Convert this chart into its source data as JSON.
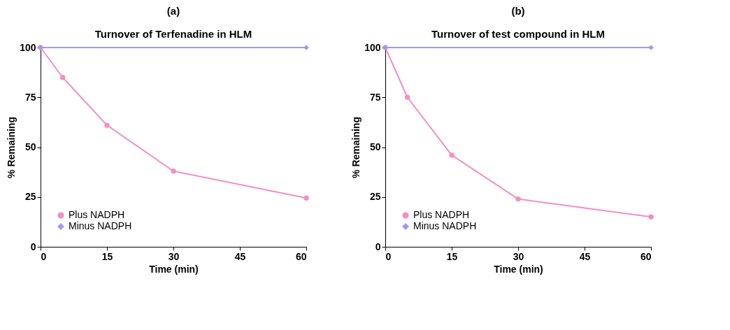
{
  "chart_data": [
    {
      "type": "line",
      "title": "(a)",
      "subtitle": "Turnover of Terfenadine in HLM",
      "xlabel": "Time (min)",
      "ylabel": "% Remaining",
      "x": [
        0,
        5,
        15,
        30,
        60
      ],
      "xlim": [
        0,
        60
      ],
      "xticks": [
        0,
        15,
        30,
        45,
        60
      ],
      "ylim": [
        0,
        100
      ],
      "yticks": [
        0,
        25,
        50,
        75,
        100
      ],
      "grid": false,
      "legend": "bottom left",
      "series": [
        {
          "name": "Plus NADPH",
          "color": "#f48fc1",
          "marker": "circle",
          "values": [
            100,
            85,
            61,
            38,
            24.5
          ]
        },
        {
          "name": "Minus NADPH",
          "color": "#9999ff",
          "marker": "diamond",
          "values": [
            100,
            null,
            null,
            null,
            100
          ]
        }
      ]
    },
    {
      "type": "line",
      "title": "(b)",
      "subtitle": "Turnover of test compound in HLM",
      "xlabel": "Time (min)",
      "ylabel": "% Remaining",
      "x": [
        0,
        5,
        15,
        30,
        60
      ],
      "xlim": [
        0,
        60
      ],
      "xticks": [
        0,
        15,
        30,
        45,
        60
      ],
      "ylim": [
        0,
        100
      ],
      "yticks": [
        0,
        25,
        50,
        75,
        100
      ],
      "grid": false,
      "legend": "bottom left",
      "series": [
        {
          "name": "Plus NADPH",
          "color": "#f48fc1",
          "marker": "circle",
          "values": [
            100,
            75,
            46,
            24,
            15
          ]
        },
        {
          "name": "Minus NADPH",
          "color": "#9999ff",
          "marker": "diamond",
          "values": [
            100,
            null,
            null,
            null,
            100
          ]
        }
      ]
    }
  ]
}
